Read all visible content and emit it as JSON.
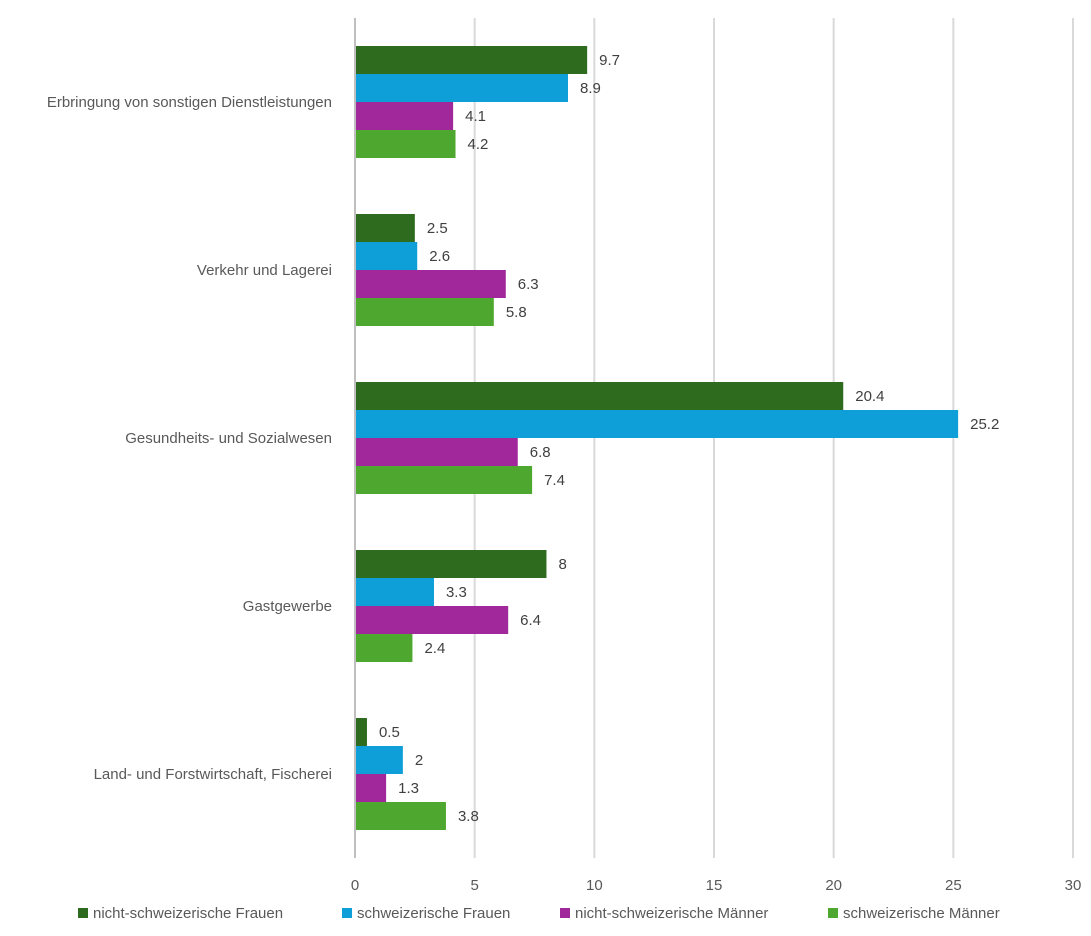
{
  "chart_data": {
    "type": "bar",
    "orientation": "horizontal",
    "categories": [
      "Erbringung von sonstigen Dienstleistungen",
      "Verkehr und Lagerei",
      "Gesundheits- und Sozialwesen",
      "Gastgewerbe",
      "Land- und Forstwirtschaft, Fischerei"
    ],
    "series": [
      {
        "name": "nicht-schweizerische Frauen",
        "color": "#2e6b1f",
        "values": [
          9.7,
          2.5,
          20.4,
          8,
          0.5
        ]
      },
      {
        "name": "schweizerische Frauen",
        "color": "#0e9fd8",
        "values": [
          8.9,
          2.6,
          25.2,
          3.3,
          2
        ]
      },
      {
        "name": "nicht-schweizerische Männer",
        "color": "#a0289a",
        "values": [
          4.1,
          6.3,
          6.8,
          6.4,
          1.3
        ]
      },
      {
        "name": "schweizerische Männer",
        "color": "#4ea72e",
        "values": [
          4.2,
          5.8,
          7.4,
          2.4,
          3.8
        ]
      }
    ],
    "x_ticks": [
      "0",
      "5",
      "10",
      "15",
      "20",
      "25",
      "30"
    ],
    "xlim": [
      0,
      30
    ],
    "grid": true,
    "legend_position": "bottom",
    "title": "",
    "xlabel": "",
    "ylabel": ""
  }
}
